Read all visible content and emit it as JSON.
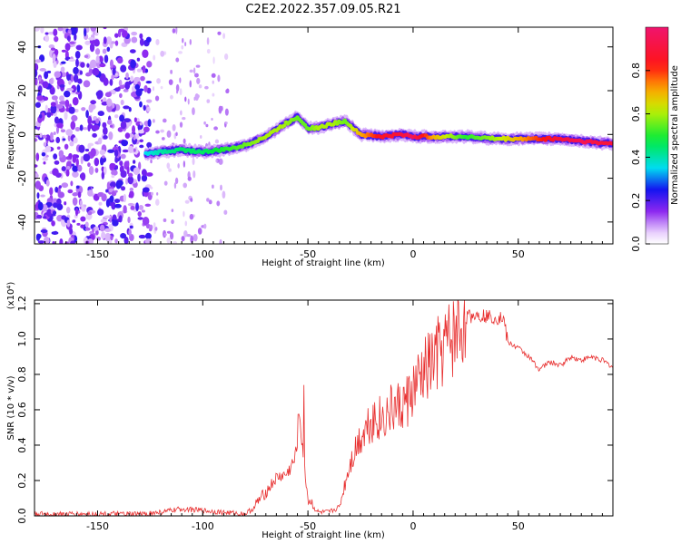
{
  "title": "C2E2.2022.357.09.05.R21",
  "spectrogram": {
    "xlabel": "Height of straight line (km)",
    "ylabel": "Frequency (Hz)",
    "xlim": [
      -180,
      95
    ],
    "ylim": [
      -50,
      49
    ],
    "xticks": [
      -150,
      -100,
      -50,
      0,
      50
    ],
    "yticks": [
      -40,
      -20,
      0,
      20,
      40
    ],
    "colorbar": {
      "label": "Normalized spectral amplitude",
      "range": [
        0,
        1
      ],
      "ticks": [
        "0.0",
        "0.2",
        "0.4",
        "0.6",
        "0.8"
      ]
    }
  },
  "snr_panel": {
    "xlabel": "Height of straight line (km)",
    "ylabel": "SNR (10 * v/v)",
    "scale_label": "(x10⁴)",
    "xlim": [
      -180,
      95
    ],
    "ylim": [
      0,
      1.22
    ],
    "xticks": [
      -150,
      -100,
      -50,
      0,
      50
    ],
    "yticks": [
      "0.0",
      "0.2",
      "0.4",
      "0.6",
      "0.8",
      "1.0",
      "1.2"
    ],
    "line_color": "#e83030"
  },
  "chart_data": [
    {
      "type": "heatmap",
      "title": "C2E2.2022.357.09.05.R21",
      "xlabel": "Height of straight line (km)",
      "ylabel": "Frequency (Hz)",
      "xlim": [
        -180,
        95
      ],
      "ylim": [
        -50,
        49
      ],
      "colorbar_label": "Normalized spectral amplitude",
      "ridge": {
        "x": [
          -127,
          -120,
          -110,
          -100,
          -90,
          -80,
          -70,
          -62,
          -55,
          -50,
          -45,
          -38,
          -32,
          -25,
          -15,
          -5,
          0,
          10,
          25,
          40,
          55,
          70,
          80,
          90,
          95
        ],
        "freq": [
          -9,
          -8,
          -7,
          -8,
          -7,
          -5,
          -1,
          4,
          8,
          3,
          3,
          5,
          6,
          0,
          -1,
          0,
          -1,
          -1,
          -1,
          -2,
          -2,
          -2,
          -3,
          -4,
          -4
        ],
        "amplitude": [
          0.35,
          0.4,
          0.45,
          0.45,
          0.5,
          0.55,
          0.6,
          0.6,
          0.55,
          0.55,
          0.6,
          0.6,
          0.55,
          0.7,
          0.85,
          0.9,
          0.95,
          0.7,
          0.5,
          0.6,
          0.75,
          0.9,
          0.95,
          0.9,
          0.9
        ]
      }
    },
    {
      "type": "line",
      "xlabel": "Height of straight line (km)",
      "ylabel": "SNR (10 * v/v)",
      "xlim": [
        -180,
        95
      ],
      "ylim": [
        0,
        1.22
      ],
      "x": [
        -180,
        -150,
        -130,
        -120,
        -110,
        -100,
        -90,
        -80,
        -75,
        -70,
        -65,
        -60,
        -56,
        -54,
        -52,
        -50,
        -45,
        -40,
        -35,
        -30,
        -25,
        -20,
        -15,
        -10,
        -5,
        0,
        5,
        10,
        15,
        20,
        25,
        30,
        35,
        40,
        43,
        45,
        50,
        55,
        60,
        65,
        70,
        75,
        80,
        85,
        90,
        95
      ],
      "y": [
        0.01,
        0.01,
        0.01,
        0.02,
        0.04,
        0.03,
        0.02,
        0.01,
        0.05,
        0.12,
        0.2,
        0.22,
        0.3,
        0.55,
        0.3,
        0.08,
        0.02,
        0.02,
        0.05,
        0.3,
        0.45,
        0.55,
        0.55,
        0.6,
        0.62,
        0.7,
        0.8,
        0.88,
        0.95,
        1.02,
        1.12,
        1.14,
        1.13,
        1.12,
        1.12,
        0.98,
        0.95,
        0.9,
        0.83,
        0.87,
        0.85,
        0.9,
        0.88,
        0.9,
        0.88,
        0.84
      ]
    }
  ]
}
